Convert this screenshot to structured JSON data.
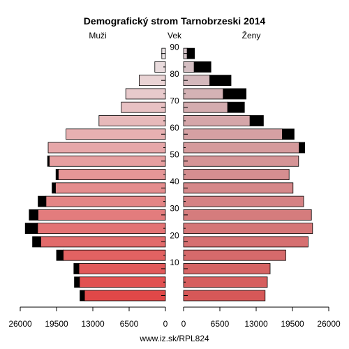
{
  "chart_data": {
    "type": "bar",
    "orientation": "horizontal-pyramid",
    "title": "Demografický strom Tarnobrzeski 2014",
    "left_label": "Muži",
    "center_label": "Vek",
    "right_label": "Ženy",
    "footer": "www.iz.sk/RPL824",
    "age_groups": [
      "0-4",
      "5-9",
      "10-14",
      "15-19",
      "20-24",
      "25-29",
      "30-34",
      "35-39",
      "40-44",
      "45-49",
      "50-54",
      "55-59",
      "60-64",
      "65-69",
      "70-74",
      "75-79",
      "80-84",
      "85-89",
      "90+"
    ],
    "age_ticks": [
      10,
      20,
      30,
      40,
      50,
      60,
      70,
      80,
      90
    ],
    "xlim": [
      0,
      26000
    ],
    "xticks_left": [
      "26000",
      "19500",
      "13000",
      "6500",
      "0"
    ],
    "xticks_right": [
      "0",
      "6500",
      "13000",
      "19500",
      "26000"
    ],
    "series": [
      {
        "name": "Muži",
        "side": "left",
        "values": [
          14500,
          15400,
          15500,
          18300,
          22300,
          22900,
          22800,
          21400,
          19700,
          19200,
          20800,
          21000,
          17800,
          11900,
          7900,
          7100,
          4700,
          1900,
          650
        ],
        "excess": [
          800,
          900,
          900,
          1200,
          1500,
          2200,
          1600,
          1400,
          600,
          400,
          300,
          0,
          0,
          0,
          0,
          0,
          0,
          0,
          0
        ]
      },
      {
        "name": "Ženy",
        "side": "right",
        "values": [
          14600,
          15000,
          15500,
          18300,
          22300,
          23100,
          22900,
          21500,
          19600,
          18900,
          20600,
          20700,
          17700,
          11900,
          7900,
          7100,
          4700,
          1900,
          650
        ],
        "excess": [
          0,
          0,
          0,
          0,
          0,
          0,
          0,
          0,
          0,
          0,
          0,
          1000,
          2100,
          2400,
          3000,
          4100,
          3800,
          3000,
          1300
        ]
      }
    ],
    "colors": {
      "male_young": "#e04848",
      "male_old": "#eae4e6",
      "female_young": "#d65858",
      "female_old": "#d4c4c8",
      "excess": "#000000"
    }
  }
}
